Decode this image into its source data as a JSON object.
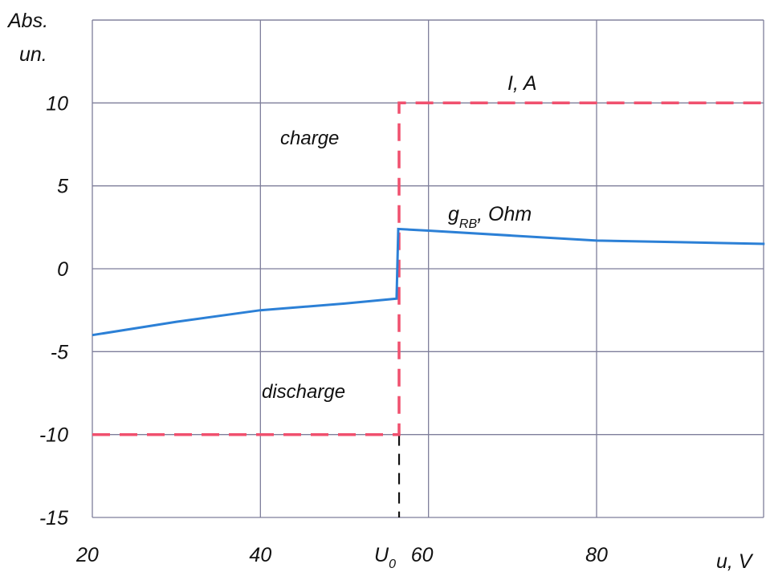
{
  "chart_data": {
    "type": "line",
    "ylabel_line1": "Abs.",
    "ylabel_line2": "un.",
    "xlabel": "u, V",
    "xlim": [
      20,
      100
    ],
    "ylim": [
      -15,
      15
    ],
    "x_ticks": [
      20,
      40,
      60,
      80
    ],
    "y_ticks": [
      10,
      5,
      0,
      -5,
      -10,
      -15
    ],
    "x_marker": {
      "value": 56.5,
      "label_main": "U",
      "label_sub": "0"
    },
    "grid": true,
    "series": [
      {
        "name": "I, A",
        "style": "dashed",
        "color": "#f0506e",
        "points": [
          [
            20,
            -10
          ],
          [
            56.5,
            -10
          ],
          [
            56.5,
            10
          ],
          [
            100,
            10
          ]
        ]
      },
      {
        "name": "g_RB, Ohm",
        "label_main": "g",
        "label_sub": "RB",
        "label_rest": ", Ohm",
        "style": "solid",
        "color": "#2c80d6",
        "points": [
          [
            20,
            -4
          ],
          [
            30,
            -3.2
          ],
          [
            40,
            -2.5
          ],
          [
            50,
            -2.1
          ],
          [
            56.2,
            -1.8
          ],
          [
            56.4,
            2.4
          ],
          [
            60,
            2.3
          ],
          [
            70,
            2.0
          ],
          [
            80,
            1.7
          ],
          [
            90,
            1.6
          ],
          [
            100,
            1.5
          ]
        ]
      }
    ],
    "annotations": [
      {
        "text": "charge",
        "x": 47.5,
        "y": 7.8
      },
      {
        "text": "discharge",
        "x": 47.5,
        "y": -7.3
      }
    ]
  }
}
